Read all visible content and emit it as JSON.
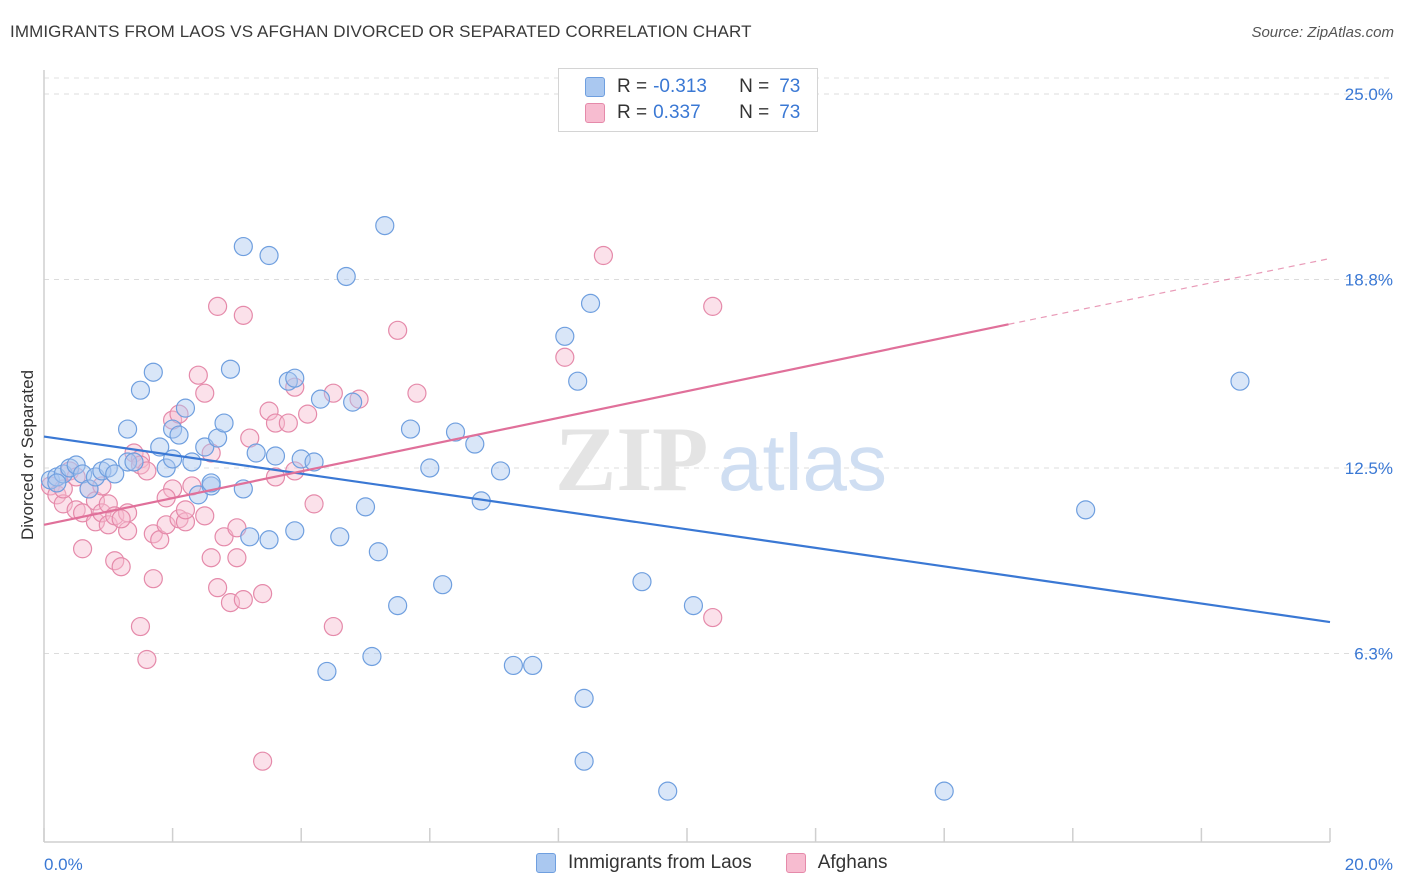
{
  "header": {
    "title": "IMMIGRANTS FROM LAOS VS AFGHAN DIVORCED OR SEPARATED CORRELATION CHART",
    "source": "Source: ZipAtlas.com"
  },
  "watermark": {
    "part1": "ZIP",
    "part2": "atlas"
  },
  "legend": {
    "rows": [
      {
        "r_label": "R =",
        "r_value": "-0.313",
        "n_label": "N =",
        "n_value": "73",
        "fill": "#aac8f0",
        "stroke": "#6f9fdf"
      },
      {
        "r_label": "R =",
        "r_value": "0.337",
        "n_label": "N =",
        "n_value": "73",
        "fill": "#f7bcd0",
        "stroke": "#e58aaa"
      }
    ]
  },
  "bottom_legend": {
    "items": [
      {
        "label": "Immigrants from Laos",
        "fill": "#aac8f0",
        "stroke": "#6f9fdf"
      },
      {
        "label": "Afghans",
        "fill": "#f7bcd0",
        "stroke": "#e58aaa"
      }
    ]
  },
  "chart_data": {
    "type": "scatter",
    "title": "IMMIGRANTS FROM LAOS VS AFGHAN DIVORCED OR SEPARATED CORRELATION CHART",
    "xlabel": "",
    "ylabel": "Divorced or Separated",
    "xlim": [
      0,
      20
    ],
    "ylim": [
      0,
      25.8
    ],
    "x_tick_labels": [
      "0.0%",
      "20.0%"
    ],
    "y_ticks": [
      6.3,
      12.5,
      18.8,
      25.0
    ],
    "y_tick_labels": [
      "6.3%",
      "12.5%",
      "18.8%",
      "25.0%"
    ],
    "grid": true,
    "colors": {
      "blue": "#3a78d4",
      "pink": "#e0709a",
      "axis_text": "#3a78d4"
    },
    "series": [
      {
        "name": "Immigrants from Laos",
        "color": "#6f9fdf",
        "fill": "#aac8f0",
        "r": "-0.313",
        "n": "73",
        "trend": {
          "x": [
            0,
            20
          ],
          "y": [
            13.55,
            7.35
          ]
        },
        "points": [
          [
            0.1,
            12.1
          ],
          [
            0.2,
            12.2
          ],
          [
            0.3,
            12.3
          ],
          [
            0.4,
            12.5
          ],
          [
            0.5,
            12.6
          ],
          [
            0.6,
            12.3
          ],
          [
            0.7,
            11.8
          ],
          [
            0.8,
            12.2
          ],
          [
            0.9,
            12.4
          ],
          [
            1.0,
            12.5
          ],
          [
            1.1,
            12.3
          ],
          [
            1.3,
            12.7
          ],
          [
            1.4,
            12.7
          ],
          [
            1.5,
            15.1
          ],
          [
            1.7,
            15.7
          ],
          [
            1.8,
            13.2
          ],
          [
            1.9,
            12.5
          ],
          [
            2.0,
            13.8
          ],
          [
            2.1,
            13.6
          ],
          [
            2.2,
            14.5
          ],
          [
            2.3,
            12.7
          ],
          [
            2.4,
            11.6
          ],
          [
            2.5,
            13.2
          ],
          [
            2.6,
            11.9
          ],
          [
            2.6,
            12.0
          ],
          [
            2.7,
            13.5
          ],
          [
            2.8,
            14.0
          ],
          [
            2.9,
            15.8
          ],
          [
            3.1,
            11.8
          ],
          [
            3.1,
            19.9
          ],
          [
            3.2,
            10.2
          ],
          [
            3.3,
            13.0
          ],
          [
            3.5,
            10.1
          ],
          [
            3.5,
            19.6
          ],
          [
            3.6,
            12.9
          ],
          [
            3.8,
            15.4
          ],
          [
            3.9,
            15.5
          ],
          [
            3.9,
            10.4
          ],
          [
            4.0,
            12.8
          ],
          [
            4.2,
            12.7
          ],
          [
            4.3,
            14.8
          ],
          [
            4.6,
            10.2
          ],
          [
            4.7,
            18.9
          ],
          [
            4.8,
            14.7
          ],
          [
            5.0,
            11.2
          ],
          [
            5.2,
            9.7
          ],
          [
            5.3,
            20.6
          ],
          [
            5.5,
            7.9
          ],
          [
            5.7,
            13.8
          ],
          [
            6.0,
            12.5
          ],
          [
            6.2,
            8.6
          ],
          [
            6.4,
            13.7
          ],
          [
            6.7,
            13.3
          ],
          [
            6.8,
            11.4
          ],
          [
            7.1,
            12.4
          ],
          [
            7.3,
            5.9
          ],
          [
            7.6,
            5.9
          ],
          [
            8.1,
            16.9
          ],
          [
            8.3,
            15.4
          ],
          [
            8.4,
            4.8
          ],
          [
            8.4,
            2.7
          ],
          [
            8.5,
            18.0
          ],
          [
            9.3,
            8.7
          ],
          [
            9.7,
            1.7
          ],
          [
            10.1,
            7.9
          ],
          [
            14.0,
            1.7
          ],
          [
            16.2,
            11.1
          ],
          [
            18.6,
            15.4
          ],
          [
            5.1,
            6.2
          ],
          [
            4.4,
            5.7
          ],
          [
            1.3,
            13.8
          ],
          [
            2.0,
            12.8
          ],
          [
            0.2,
            12.0
          ]
        ]
      },
      {
        "name": "Afghans",
        "color": "#e58aaa",
        "fill": "#f7bcd0",
        "r": "0.337",
        "n": "73",
        "trend": {
          "x": [
            0,
            15
          ],
          "y": [
            10.6,
            17.3
          ]
        },
        "trend_dashed": {
          "x": [
            15,
            20
          ],
          "y": [
            17.3,
            19.5
          ]
        },
        "points": [
          [
            0.1,
            11.9
          ],
          [
            0.2,
            11.6
          ],
          [
            0.3,
            11.3
          ],
          [
            0.4,
            12.4
          ],
          [
            0.5,
            11.1
          ],
          [
            0.6,
            11.0
          ],
          [
            0.6,
            9.8
          ],
          [
            0.7,
            11.8
          ],
          [
            0.8,
            10.7
          ],
          [
            0.8,
            11.4
          ],
          [
            0.9,
            11.0
          ],
          [
            1.0,
            11.3
          ],
          [
            1.0,
            10.6
          ],
          [
            1.1,
            9.4
          ],
          [
            1.1,
            10.9
          ],
          [
            1.2,
            9.2
          ],
          [
            1.3,
            10.4
          ],
          [
            1.3,
            11.0
          ],
          [
            1.4,
            13.0
          ],
          [
            1.5,
            12.8
          ],
          [
            1.5,
            12.6
          ],
          [
            1.5,
            7.2
          ],
          [
            1.6,
            6.1
          ],
          [
            1.7,
            10.3
          ],
          [
            1.7,
            8.8
          ],
          [
            1.8,
            10.1
          ],
          [
            1.9,
            10.6
          ],
          [
            2.0,
            11.8
          ],
          [
            2.0,
            14.1
          ],
          [
            2.1,
            14.3
          ],
          [
            2.1,
            10.8
          ],
          [
            2.2,
            10.7
          ],
          [
            2.3,
            11.9
          ],
          [
            2.4,
            15.6
          ],
          [
            2.5,
            15.0
          ],
          [
            2.6,
            9.5
          ],
          [
            2.6,
            13.0
          ],
          [
            2.7,
            8.5
          ],
          [
            2.7,
            17.9
          ],
          [
            2.8,
            10.2
          ],
          [
            2.9,
            8.0
          ],
          [
            3.0,
            10.5
          ],
          [
            3.0,
            9.5
          ],
          [
            3.1,
            8.1
          ],
          [
            3.1,
            17.6
          ],
          [
            3.2,
            13.5
          ],
          [
            3.4,
            2.7
          ],
          [
            3.4,
            8.3
          ],
          [
            3.5,
            14.4
          ],
          [
            3.6,
            14.0
          ],
          [
            3.6,
            12.2
          ],
          [
            3.8,
            14.0
          ],
          [
            3.9,
            15.2
          ],
          [
            3.9,
            12.4
          ],
          [
            4.1,
            14.3
          ],
          [
            4.2,
            11.3
          ],
          [
            4.5,
            15.0
          ],
          [
            4.5,
            7.2
          ],
          [
            4.9,
            14.8
          ],
          [
            5.5,
            17.1
          ],
          [
            5.8,
            15.0
          ],
          [
            8.1,
            16.2
          ],
          [
            8.7,
            19.6
          ],
          [
            10.4,
            7.5
          ],
          [
            10.4,
            17.9
          ],
          [
            0.3,
            11.8
          ],
          [
            0.5,
            12.2
          ],
          [
            2.2,
            11.1
          ],
          [
            2.5,
            10.9
          ],
          [
            1.2,
            10.8
          ],
          [
            1.9,
            11.5
          ],
          [
            0.9,
            11.9
          ],
          [
            1.6,
            12.4
          ]
        ]
      }
    ]
  }
}
